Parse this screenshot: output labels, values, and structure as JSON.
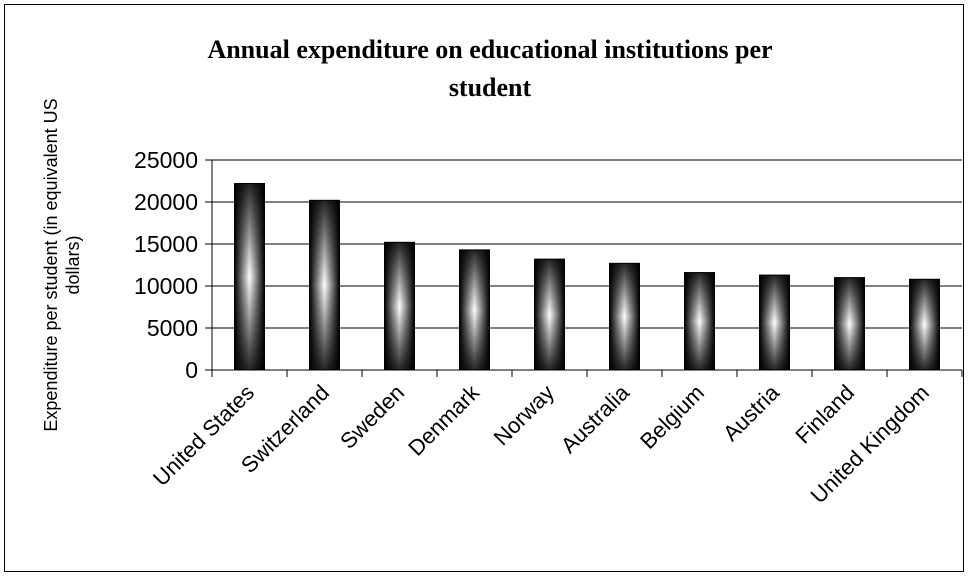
{
  "chart_data": {
    "type": "bar",
    "title_lines": [
      "Annual expenditure on educational institutions per",
      "student"
    ],
    "ylabel_lines": [
      "Expenditure per student (in equivalent US",
      "dollars)"
    ],
    "xlabel": "",
    "categories": [
      "United States",
      "Switzerland",
      "Sweden",
      "Denmark",
      "Norway",
      "Australia",
      "Belgium",
      "Austria",
      "Finland",
      "United Kingdom"
    ],
    "values": [
      22200,
      20200,
      15200,
      14300,
      13200,
      12700,
      11600,
      11300,
      11000,
      10800
    ],
    "ylim": [
      0,
      25000
    ],
    "yticks": [
      "0",
      "5000",
      "10000",
      "15000",
      "20000",
      "25000"
    ],
    "grid": true,
    "legend": "none",
    "bar_style": "black-white-black gradient"
  }
}
